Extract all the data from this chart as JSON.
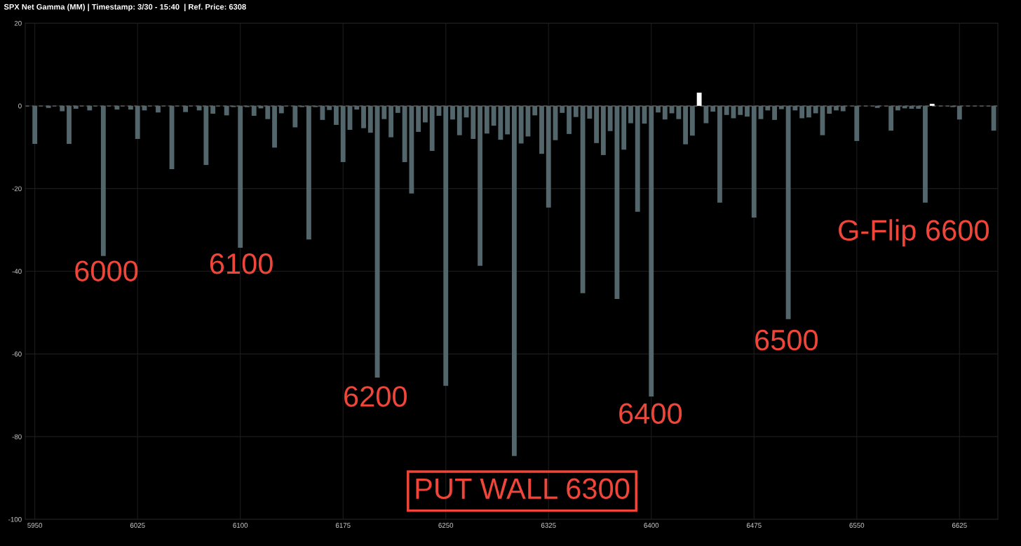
{
  "chart_data": {
    "type": "bar",
    "title": "SPX Net Gamma (MM) | Timestamp: 3/30 - 15:40  | Ref. Price: 6308",
    "x": [
      5950,
      5960,
      5970,
      5975,
      5980,
      5990,
      6000,
      6010,
      6020,
      6025,
      6030,
      6040,
      6050,
      6060,
      6070,
      6075,
      6080,
      6090,
      6095,
      6100,
      6105,
      6110,
      6115,
      6120,
      6125,
      6130,
      6140,
      6145,
      6150,
      6155,
      6160,
      6165,
      6170,
      6175,
      6180,
      6185,
      6190,
      6195,
      6200,
      6205,
      6210,
      6215,
      6220,
      6225,
      6230,
      6235,
      6240,
      6245,
      6250,
      6255,
      6260,
      6265,
      6270,
      6275,
      6280,
      6285,
      6290,
      6295,
      6300,
      6305,
      6310,
      6315,
      6320,
      6325,
      6330,
      6335,
      6340,
      6345,
      6350,
      6355,
      6360,
      6365,
      6370,
      6375,
      6380,
      6385,
      6390,
      6395,
      6400,
      6405,
      6410,
      6415,
      6420,
      6425,
      6430,
      6435,
      6440,
      6445,
      6450,
      6455,
      6460,
      6465,
      6470,
      6475,
      6480,
      6485,
      6490,
      6495,
      6500,
      6505,
      6510,
      6515,
      6520,
      6525,
      6530,
      6535,
      6540,
      6550,
      6565,
      6575,
      6580,
      6585,
      6590,
      6595,
      6600,
      6605,
      6620,
      6625,
      6650
    ],
    "values": [
      -9.2,
      -0.5,
      -1.3,
      -9.2,
      -0.7,
      -1.1,
      -36.3,
      -0.9,
      -0.9,
      -8.0,
      -1.1,
      -1.6,
      -15.3,
      -1.5,
      -1.1,
      -14.3,
      -1.9,
      -2.3,
      -0.3,
      -34.3,
      -0.3,
      -2.4,
      -0.6,
      -3.2,
      -10.1,
      -1.8,
      -5.2,
      -0.3,
      -32.3,
      -0.3,
      -3.4,
      -1.0,
      -4.6,
      -13.6,
      -5.8,
      -0.9,
      -5.4,
      -6.5,
      -65.7,
      -3.2,
      -7.6,
      -1.7,
      -13.6,
      -21.2,
      -6.3,
      -4.0,
      -10.9,
      -2.4,
      -67.7,
      -3.3,
      -7.1,
      -2.8,
      -8.0,
      -38.7,
      -6.7,
      -4.8,
      -8.2,
      -6.9,
      -84.7,
      -9.1,
      -7.4,
      -2.3,
      -11.6,
      -24.6,
      -8.3,
      -1.7,
      -6.8,
      -2.7,
      -45.3,
      -3.1,
      -9.0,
      -11.9,
      -6.1,
      -46.7,
      -10.6,
      -4.2,
      -25.6,
      -4.3,
      -70.3,
      -1.6,
      -3.3,
      -1.8,
      -3.2,
      -9.3,
      -7.2,
      3.2,
      -4.2,
      -1.4,
      -23.4,
      -2.2,
      -3.0,
      -2.2,
      -2.6,
      -27.0,
      -3.2,
      -1.1,
      -3.4,
      -0.8,
      -51.6,
      -1.1,
      -3.0,
      -2.8,
      -1.8,
      -7.1,
      -1.9,
      -1.1,
      -1.3,
      -8.5,
      -0.5,
      -6.0,
      -1.1,
      -0.6,
      -0.7,
      -0.7,
      -23.4,
      0.5,
      -0.3,
      -3.3,
      -6.0
    ],
    "colors": [
      "#52666b",
      "#52666b",
      "#52666b",
      "#52666b",
      "#52666b",
      "#52666b",
      "#52666b",
      "#52666b",
      "#52666b",
      "#52666b",
      "#52666b",
      "#52666b",
      "#52666b",
      "#52666b",
      "#52666b",
      "#52666b",
      "#52666b",
      "#52666b",
      "#52666b",
      "#52666b",
      "#52666b",
      "#52666b",
      "#52666b",
      "#52666b",
      "#52666b",
      "#52666b",
      "#52666b",
      "#52666b",
      "#52666b",
      "#52666b",
      "#52666b",
      "#52666b",
      "#52666b",
      "#52666b",
      "#52666b",
      "#52666b",
      "#52666b",
      "#52666b",
      "#52666b",
      "#52666b",
      "#52666b",
      "#52666b",
      "#52666b",
      "#52666b",
      "#52666b",
      "#52666b",
      "#52666b",
      "#52666b",
      "#52666b",
      "#52666b",
      "#52666b",
      "#52666b",
      "#52666b",
      "#52666b",
      "#52666b",
      "#52666b",
      "#52666b",
      "#52666b",
      "#52666b",
      "#52666b",
      "#52666b",
      "#52666b",
      "#52666b",
      "#52666b",
      "#52666b",
      "#52666b",
      "#52666b",
      "#52666b",
      "#52666b",
      "#52666b",
      "#52666b",
      "#52666b",
      "#52666b",
      "#52666b",
      "#52666b",
      "#52666b",
      "#52666b",
      "#52666b",
      "#52666b",
      "#52666b",
      "#52666b",
      "#52666b",
      "#52666b",
      "#52666b",
      "#52666b",
      "#ffffff",
      "#52666b",
      "#52666b",
      "#52666b",
      "#52666b",
      "#52666b",
      "#52666b",
      "#52666b",
      "#52666b",
      "#52666b",
      "#52666b",
      "#52666b",
      "#52666b",
      "#52666b",
      "#52666b",
      "#52666b",
      "#52666b",
      "#52666b",
      "#52666b",
      "#52666b",
      "#52666b",
      "#52666b",
      "#52666b",
      "#52666b",
      "#52666b",
      "#52666b",
      "#52666b",
      "#52666b",
      "#52666b",
      "#52666b",
      "#ffffff",
      "#52666b",
      "#52666b",
      "#52666b"
    ],
    "xlim": [
      5943,
      6653
    ],
    "xticks": [
      5950,
      6025,
      6100,
      6175,
      6250,
      6325,
      6400,
      6475,
      6550,
      6625
    ],
    "ylim": [
      -100,
      20
    ],
    "yticks": [
      -100,
      -80,
      -60,
      -40,
      -20,
      0,
      20
    ],
    "grid": true,
    "ref_lines": [
      {
        "axis": "y",
        "value": 0,
        "color": "#ffffff",
        "line_style": "dashed"
      }
    ],
    "annotations": [
      {
        "text": "6000",
        "x": 6000,
        "y": -36.3
      },
      {
        "text": "6100",
        "x": 6100,
        "y": -34.3
      },
      {
        "text": "6200",
        "x": 6200,
        "y": -65.7
      },
      {
        "text": "PUT WALL 6300",
        "x": 6300,
        "y": -84.7
      },
      {
        "text": "6400",
        "x": 6400,
        "y": -70.3
      },
      {
        "text": "6500",
        "x": 6500,
        "y": -51.6
      },
      {
        "text": "G-Flip 6600",
        "x": 6600,
        "y": -23.4
      }
    ]
  }
}
